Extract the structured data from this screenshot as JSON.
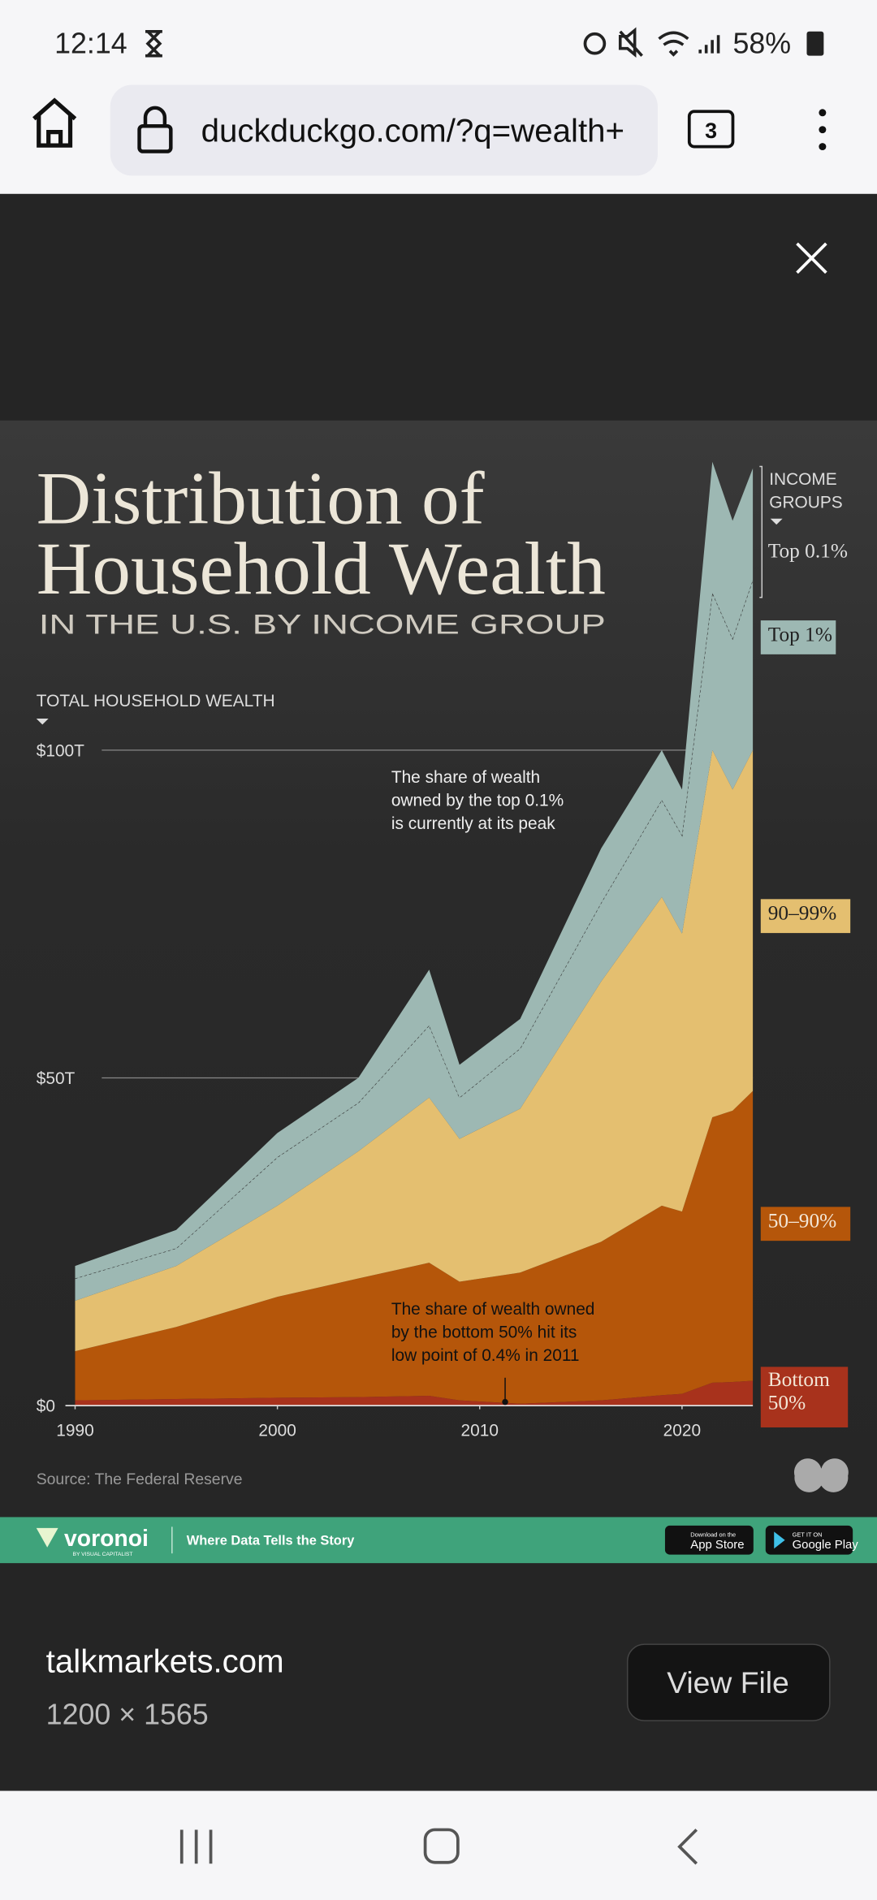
{
  "status_bar": {
    "time": "12:14",
    "battery": "58%"
  },
  "browser": {
    "url": "duckduckgo.com/?q=wealth+",
    "tab_count": 3
  },
  "image": {
    "chart": {
      "type": "area",
      "title": [
        "Distribution of",
        "Household Wealth"
      ],
      "subtitle": "IN THE U.S. BY INCOME GROUP",
      "y_label": "TOTAL HOUSEHOLD WEALTH",
      "legend_title": [
        "INCOME",
        "GROUPS"
      ],
      "annotations": [
        [
          "The share of wealth",
          "owned by the top 0.1%",
          "is currently at its peak"
        ],
        [
          "The share of wealth owned",
          "by the bottom 50% hit its",
          "low point of 0.4% in 2011"
        ]
      ],
      "source": "Source: The Federal Reserve",
      "x": [
        1990,
        1995,
        2000,
        2004,
        2007.5,
        2009,
        2012,
        2016,
        2019,
        2020,
        2021.5,
        2022.5,
        2023.5
      ],
      "xlim": [
        1990,
        2023.5
      ],
      "xticks": [
        1990,
        2000,
        2010,
        2020
      ],
      "ylim": [
        0,
        144.2
      ],
      "yticks": [
        {
          "value": 0,
          "label": "$0"
        },
        {
          "value": 50,
          "label": "$50T"
        },
        {
          "value": 100,
          "label": "$100T"
        }
      ],
      "series": [
        {
          "name": "Bottom 50%",
          "color": "#a8321c",
          "values": [
            0.8,
            1.0,
            1.2,
            1.3,
            1.5,
            0.8,
            0.3,
            0.8,
            1.6,
            1.8,
            3.5,
            3.6,
            3.8
          ]
        },
        {
          "name": "50–90%",
          "color": "#b5560a",
          "values": [
            7.5,
            11.0,
            15.4,
            18.1,
            20.3,
            18.1,
            20.0,
            24.2,
            28.9,
            27.8,
            40.5,
            41.4,
            44.2
          ]
        },
        {
          "name": "90–99%",
          "color": "#e4bf70",
          "values": [
            7.7,
            9.3,
            13.9,
            19.4,
            25.2,
            21.8,
            25.0,
            39.7,
            47.1,
            42.4,
            56.0,
            49.0,
            52.0
          ]
        },
        {
          "name": "Top 1%",
          "color": "#9db8b3",
          "values": [
            3.4,
            2.7,
            7.4,
            7.4,
            11.0,
            6.3,
            9.2,
            12.0,
            14.8,
            15.0,
            24.0,
            23.0,
            26.0
          ]
        },
        {
          "name": "Top 0.1%",
          "color": "#9db8b3",
          "values": [
            1.9,
            2.8,
            3.7,
            3.8,
            8.5,
            5.0,
            4.5,
            8.3,
            7.6,
            7.0,
            20.0,
            18.0,
            17.0
          ]
        }
      ]
    },
    "footer": {
      "brand": "voronoi",
      "brand_sub": "BY VISUAL CAPITALIST",
      "tagline": "Where Data Tells the Story",
      "app_store": [
        "Download on the",
        "App Store"
      ],
      "google_play": [
        "GET IT ON",
        "Google Play"
      ]
    }
  },
  "image_info": {
    "site": "talkmarkets.com",
    "dimensions": "1200 × 1565",
    "button": "View File"
  }
}
